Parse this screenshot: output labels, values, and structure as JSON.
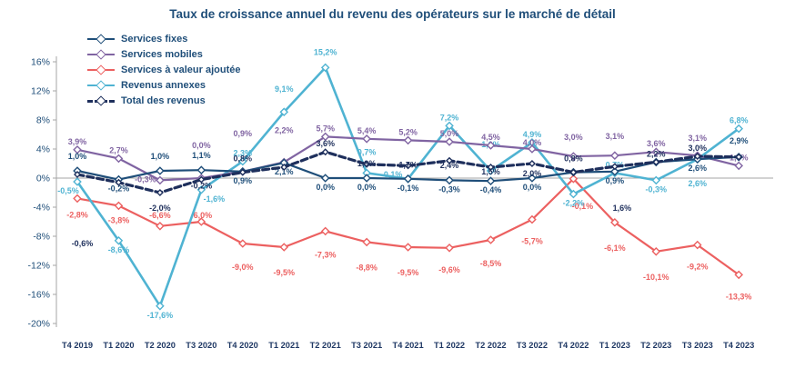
{
  "chart_data": {
    "type": "line",
    "title": "Taux de croissance annuel du revenu des opérateurs sur le marché de détail",
    "categories": [
      "T4 2019",
      "T1 2020",
      "T2 2020",
      "T3 2020",
      "T4 2020",
      "T1 2021",
      "T2 2021",
      "T3 2021",
      "T4 2021",
      "T1 2022",
      "T2 2022",
      "T3 2022",
      "T4 2022",
      "T1 2023",
      "T2 2023",
      "T3 2023",
      "T4 2023"
    ],
    "ylim": [
      -20,
      16
    ],
    "y_ticks": [
      "16%",
      "12%",
      "8%",
      "4%",
      "0%",
      "-4%",
      "-8%",
      "-12%",
      "-16%",
      "-20%"
    ],
    "grid": "zero-line-only",
    "legend_position": "top-left",
    "series": [
      {
        "name": "Services fixes",
        "color": "#1f4e79",
        "dash": null,
        "width": 2.2,
        "label_side": "below",
        "values": [
          1.0,
          -0.2,
          1.0,
          1.1,
          0.9,
          2.1,
          0.0,
          0.0,
          -0.1,
          -0.3,
          -0.4,
          0.0,
          0.8,
          0.9,
          2.2,
          2.6,
          2.9
        ],
        "labels": [
          "1,0%",
          "-0,2%",
          "1,0%",
          "1,1%",
          "0,9%",
          "2,1%",
          "0,0%",
          "0,0%",
          "-0,1%",
          "-0,3%",
          "-0,4%",
          "0,0%",
          "",
          "0,9%",
          "",
          "2,6%",
          "2,9%"
        ],
        "label_dy": {
          "0": -26,
          "2": -26,
          "3": -26,
          "16": -28
        },
        "label_dx": {}
      },
      {
        "name": "Services mobiles",
        "color": "#8064a2",
        "dash": null,
        "width": 2.2,
        "label_side": "above",
        "values": [
          3.9,
          2.7,
          -0.3,
          0.0,
          0.9,
          2.2,
          5.7,
          5.4,
          5.2,
          5.0,
          4.5,
          4.0,
          3.0,
          3.1,
          3.6,
          3.1,
          1.7
        ],
        "labels": [
          "3,9%",
          "2,7%",
          "-0,3%",
          "0,0%",
          "0,9%",
          "2,2%",
          "5,7%",
          "5,4%",
          "5,2%",
          "5,0%",
          "4,5%",
          "4,0%",
          "3,0%",
          "3,1%",
          "3,6%",
          "3,1%",
          "1,7%"
        ],
        "label_dy": {
          "2": 8,
          "3": -27,
          "4": -33,
          "5": -26,
          "11": 2,
          "12": -12,
          "13": -12,
          "15": -10
        },
        "label_dx": {
          "2": -16
        }
      },
      {
        "name": "Services à valeur ajoutée",
        "color": "#ec6060",
        "dash": null,
        "width": 2.2,
        "label_side": "below",
        "values": [
          -2.8,
          -3.8,
          -6.6,
          -6.0,
          -9.0,
          -9.5,
          -7.3,
          -8.8,
          -9.5,
          -9.6,
          -8.5,
          -5.7,
          -0.1,
          -6.1,
          -10.1,
          -9.2,
          -13.3
        ],
        "labels": [
          "-2,8%",
          "-3,8%",
          "-6,6%",
          "-6,0%",
          "-9,0%",
          "-9,5%",
          "-7,3%",
          "-8,8%",
          "-9,5%",
          "-9,6%",
          "-8,5%",
          "-5,7%",
          "-0,1%",
          "-6,1%",
          "-10,1%",
          "-9,2%",
          "-13,3%"
        ],
        "label_dy": {
          "0": 8,
          "1": 6,
          "2": -22,
          "3": -17,
          "4": 16,
          "5": 18,
          "6": 16,
          "7": 18,
          "8": 18,
          "9": 14,
          "10": 16,
          "11": 14,
          "12": 20,
          "13": 18,
          "14": 18,
          "15": 14,
          "16": 14
        },
        "label_dx": {
          "12": 10
        }
      },
      {
        "name": "Revenus annexes",
        "color": "#4fb3d2",
        "dash": null,
        "width": 2.6,
        "label_side": "auto",
        "values": [
          -0.5,
          -8.6,
          -17.6,
          -1.6,
          2.3,
          9.1,
          15.2,
          0.7,
          -0.1,
          7.2,
          1.0,
          4.9,
          -2.2,
          0.7,
          -0.3,
          2.6,
          6.8
        ],
        "labels": [
          "-0,5%",
          "-8,6%",
          "-17,6%",
          "-1,6%",
          "2,3%",
          "9,1%",
          "15,2%",
          "0,7%",
          "-0,1%",
          "7,2%",
          "1,0%",
          "4,9%",
          "-2,2%",
          "0,7%",
          "-0,3%",
          "2,6%",
          "6,8%"
        ],
        "label_dy": {
          "5": -16,
          "6": -8,
          "7": -14,
          "8": 4,
          "10": -20,
          "15": 36
        },
        "label_dx": {
          "0": -10,
          "3": 14,
          "8": -18
        }
      },
      {
        "name": "Total des revenus",
        "color": "#1e2f5c",
        "dash": "7,4",
        "width": 3.2,
        "label_side": "above",
        "values": [
          0.5,
          -0.6,
          -2.0,
          -0.2,
          0.8,
          1.5,
          3.6,
          1.9,
          1.7,
          2.4,
          1.5,
          2.0,
          0.8,
          1.6,
          2.2,
          3.0,
          2.9
        ],
        "labels": [
          "",
          "-0,6%",
          "-2,0%",
          "-0,2%",
          "0,8%",
          "",
          "3,6%",
          "1,9%",
          "1,7%",
          "2,4%",
          "1,5%",
          "2,0%",
          "0,8%",
          "1,6%",
          "2,2%",
          "3,0%",
          ""
        ],
        "label_dy": {
          "1": 76,
          "2": 26,
          "3": 16,
          "4": -6,
          "7": 8,
          "8": 8,
          "9": 14,
          "10": 14,
          "11": 20,
          "12": -6,
          "13": 55
        },
        "label_dx": {
          "1": -40,
          "13": 8
        }
      }
    ]
  }
}
